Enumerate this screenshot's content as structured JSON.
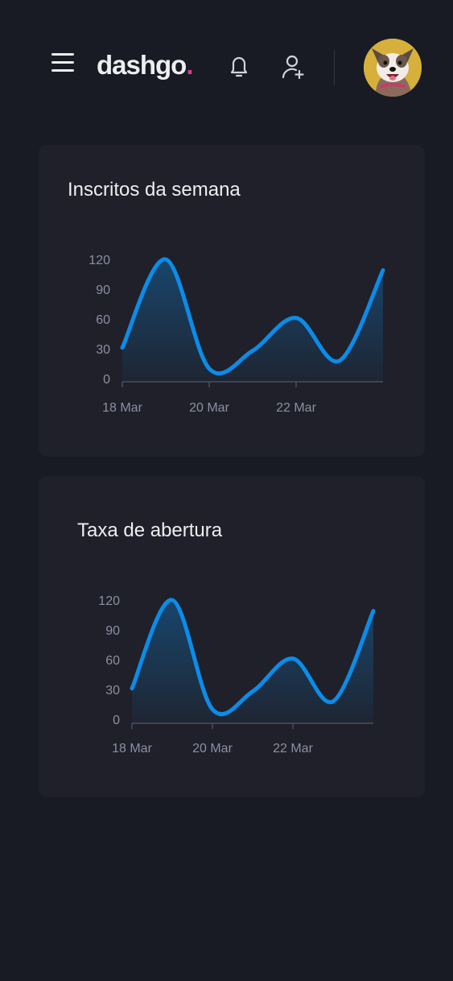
{
  "header": {
    "logo_text": "dashgo",
    "logo_dot": ".",
    "menu_icon": "hamburger-menu-icon",
    "notification_icon": "bell-icon",
    "add_user_icon": "user-plus-icon",
    "avatar_icon": "dog-avatar",
    "accent_color": "#d53f8c"
  },
  "cards": [
    {
      "title": "Inscritos da semana"
    },
    {
      "title": "Taxa de abertura"
    }
  ],
  "chart_data": [
    {
      "type": "area",
      "title": "Inscritos da semana",
      "xlabel": "",
      "ylabel": "",
      "x": [
        "2021-03-18",
        "2021-03-19",
        "2021-03-20",
        "2021-03-21",
        "2021-03-22",
        "2021-03-23",
        "2021-03-24"
      ],
      "x_ticks": [
        "18 Mar",
        "20 Mar",
        "22 Mar"
      ],
      "y_ticks": [
        0,
        30,
        60,
        90,
        120
      ],
      "ylim": [
        0,
        120
      ],
      "series": [
        {
          "values": [
            31,
            120,
            10,
            28,
            61,
            18,
            109
          ]
        }
      ],
      "line_color": "#0b8ce9",
      "grid": false
    },
    {
      "type": "area",
      "title": "Taxa de abertura",
      "xlabel": "",
      "ylabel": "",
      "x": [
        "2021-03-18",
        "2021-03-19",
        "2021-03-20",
        "2021-03-21",
        "2021-03-22",
        "2021-03-23",
        "2021-03-24"
      ],
      "x_ticks": [
        "18 Mar",
        "20 Mar",
        "22 Mar"
      ],
      "y_ticks": [
        0,
        30,
        60,
        90,
        120
      ],
      "ylim": [
        0,
        120
      ],
      "series": [
        {
          "values": [
            31,
            120,
            10,
            28,
            61,
            18,
            109
          ]
        }
      ],
      "line_color": "#0b8ce9",
      "grid": false
    }
  ]
}
